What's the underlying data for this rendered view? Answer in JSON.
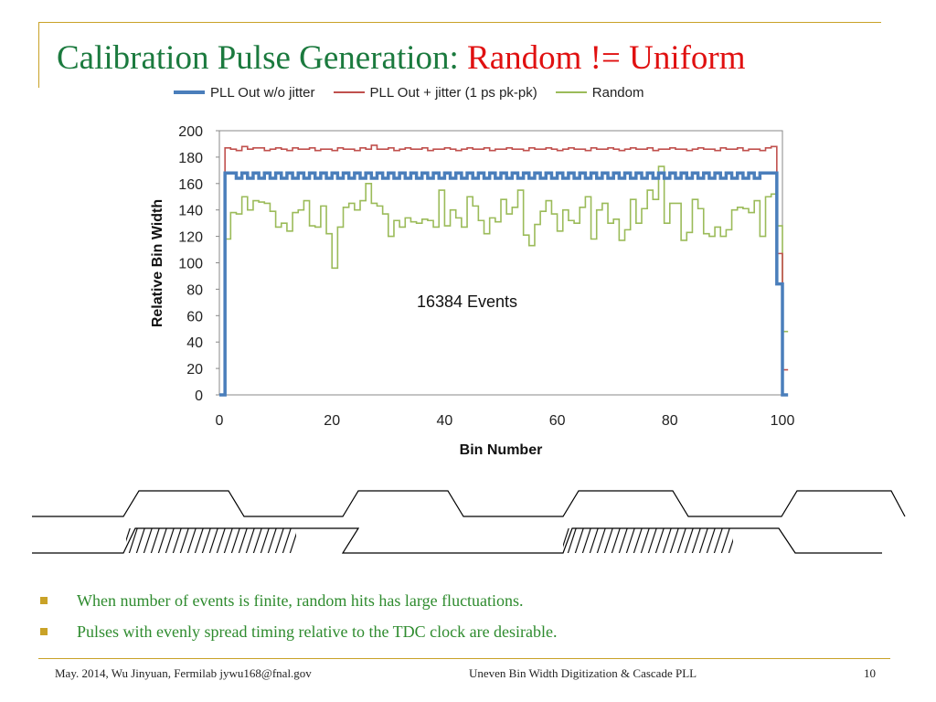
{
  "slide": {
    "title_main": "Calibration Pulse Generation: ",
    "title_accent": "Random != Uniform",
    "bullets": [
      "When number of events is finite, random hits has large fluctuations.",
      "Pulses with evenly spread timing relative to the TDC clock are desirable."
    ],
    "footer": {
      "left": "May. 2014, Wu Jinyuan, Fermilab jywu168@fnal.gov",
      "center": "Uneven Bin Width Digitization & Cascade PLL",
      "page": "10"
    }
  },
  "colors": {
    "title": "#1b7a3e",
    "title_accent": "#e01010",
    "accent_gold": "#c9a227",
    "bullet_text": "#2e8b2e"
  },
  "chart_data": {
    "type": "line",
    "xlabel": "Bin Number",
    "ylabel": "Relative Bin Width",
    "xlim": [
      0,
      100
    ],
    "ylim": [
      0,
      200
    ],
    "xticks": [
      0,
      20,
      40,
      60,
      80,
      100
    ],
    "yticks": [
      0,
      20,
      40,
      60,
      80,
      100,
      120,
      140,
      160,
      180,
      200
    ],
    "grid": false,
    "legend_position": "top",
    "annotation": "16384 Events",
    "series": [
      {
        "name": "PLL Out w/o jitter",
        "color": "#4a7ebb",
        "step": true,
        "values": [
          0,
          168,
          168,
          164,
          168,
          164,
          168,
          164,
          168,
          164,
          168,
          164,
          168,
          164,
          168,
          164,
          168,
          164,
          168,
          164,
          168,
          164,
          168,
          164,
          168,
          164,
          168,
          164,
          168,
          164,
          168,
          164,
          168,
          164,
          168,
          164,
          168,
          164,
          168,
          164,
          168,
          164,
          168,
          164,
          168,
          164,
          168,
          164,
          168,
          164,
          168,
          164,
          168,
          164,
          168,
          164,
          168,
          164,
          168,
          164,
          168,
          164,
          168,
          164,
          168,
          164,
          168,
          164,
          168,
          164,
          168,
          164,
          168,
          164,
          168,
          164,
          168,
          164,
          168,
          164,
          168,
          164,
          168,
          164,
          168,
          164,
          168,
          164,
          168,
          164,
          168,
          164,
          168,
          164,
          168,
          164,
          168,
          168,
          168,
          84,
          0
        ]
      },
      {
        "name": "PLL Out + jitter (1 ps pk-pk)",
        "color": "#c0504d",
        "step": true,
        "values": [
          0,
          187,
          186,
          185,
          188,
          186,
          187,
          187,
          185,
          186,
          187,
          186,
          185,
          187,
          186,
          186,
          187,
          185,
          186,
          186,
          185,
          187,
          186,
          186,
          185,
          187,
          186,
          189,
          186,
          186,
          187,
          185,
          186,
          187,
          186,
          186,
          187,
          185,
          186,
          186,
          187,
          186,
          185,
          186,
          187,
          186,
          186,
          187,
          185,
          186,
          186,
          187,
          186,
          186,
          185,
          187,
          186,
          186,
          187,
          186,
          185,
          186,
          187,
          186,
          186,
          185,
          187,
          186,
          186,
          187,
          186,
          185,
          186,
          187,
          186,
          186,
          187,
          185,
          186,
          186,
          187,
          186,
          186,
          185,
          186,
          187,
          186,
          186,
          185,
          187,
          186,
          186,
          187,
          185,
          186,
          186,
          185,
          187,
          188,
          107,
          19
        ]
      },
      {
        "name": "Random",
        "color": "#9bbb59",
        "step": true,
        "values": [
          0,
          118,
          138,
          137,
          150,
          140,
          147,
          146,
          145,
          139,
          127,
          130,
          124,
          138,
          140,
          147,
          128,
          127,
          143,
          122,
          96,
          127,
          142,
          145,
          140,
          147,
          160,
          145,
          143,
          137,
          120,
          132,
          127,
          134,
          131,
          130,
          133,
          132,
          127,
          155,
          128,
          140,
          134,
          127,
          150,
          143,
          132,
          122,
          134,
          131,
          148,
          137,
          142,
          155,
          121,
          113,
          129,
          139,
          147,
          137,
          124,
          140,
          132,
          130,
          142,
          150,
          118,
          140,
          145,
          130,
          133,
          117,
          125,
          148,
          130,
          141,
          155,
          148,
          173,
          130,
          145,
          145,
          117,
          123,
          148,
          141,
          122,
          120,
          127,
          120,
          125,
          140,
          142,
          141,
          138,
          147,
          120,
          150,
          152,
          128,
          48
        ]
      }
    ]
  }
}
